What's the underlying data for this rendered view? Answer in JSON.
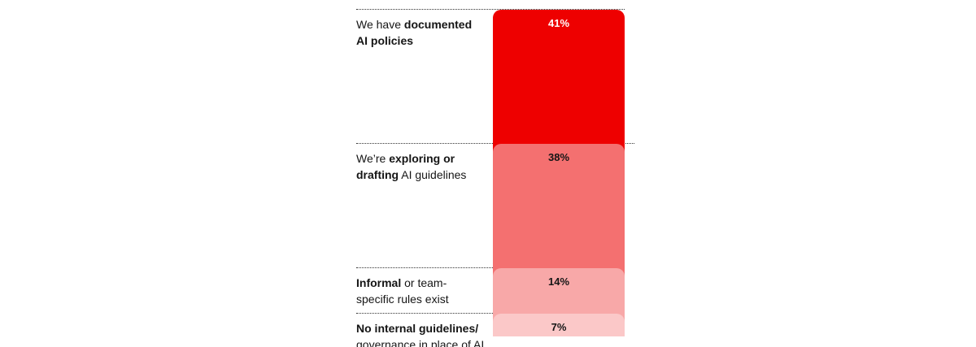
{
  "chart_data": {
    "type": "bar",
    "categories": [
      "We have documented AI policies",
      "We’re exploring or drafting AI guidelines",
      "Informal or team-specific rules exist",
      "No internal guidelines/ governance in place of AI"
    ],
    "values": [
      41,
      38,
      14,
      7
    ],
    "value_labels": [
      "41%",
      "38%",
      "14%",
      "7%"
    ],
    "category_labels": [
      [
        {
          "text": "We have ",
          "bold": false
        },
        {
          "text": "documented",
          "bold": true
        },
        {
          "text": "\n",
          "bold": false
        },
        {
          "text": "AI policies",
          "bold": true
        }
      ],
      [
        {
          "text": "We’re ",
          "bold": false
        },
        {
          "text": "exploring or",
          "bold": true
        },
        {
          "text": "\n",
          "bold": false
        },
        {
          "text": "drafting",
          "bold": true
        },
        {
          "text": " AI guidelines",
          "bold": false
        }
      ],
      [
        {
          "text": "Informal",
          "bold": true
        },
        {
          "text": " or team-",
          "bold": false
        },
        {
          "text": "\n",
          "bold": false
        },
        {
          "text": "specific rules exist",
          "bold": false
        }
      ],
      [
        {
          "text": "No internal guidelines/",
          "bold": true
        },
        {
          "text": "\n",
          "bold": false
        },
        {
          "text": "governance in place of AI",
          "bold": false
        }
      ]
    ],
    "colors": [
      "#ee0000",
      "#f47070",
      "#f8a8a8",
      "#fbc8c8"
    ],
    "label_colors": [
      "#ffffff",
      "#151515",
      "#151515",
      "#151515"
    ],
    "title": "",
    "xlabel": "",
    "ylabel": "",
    "grid": false,
    "legend": "none"
  }
}
